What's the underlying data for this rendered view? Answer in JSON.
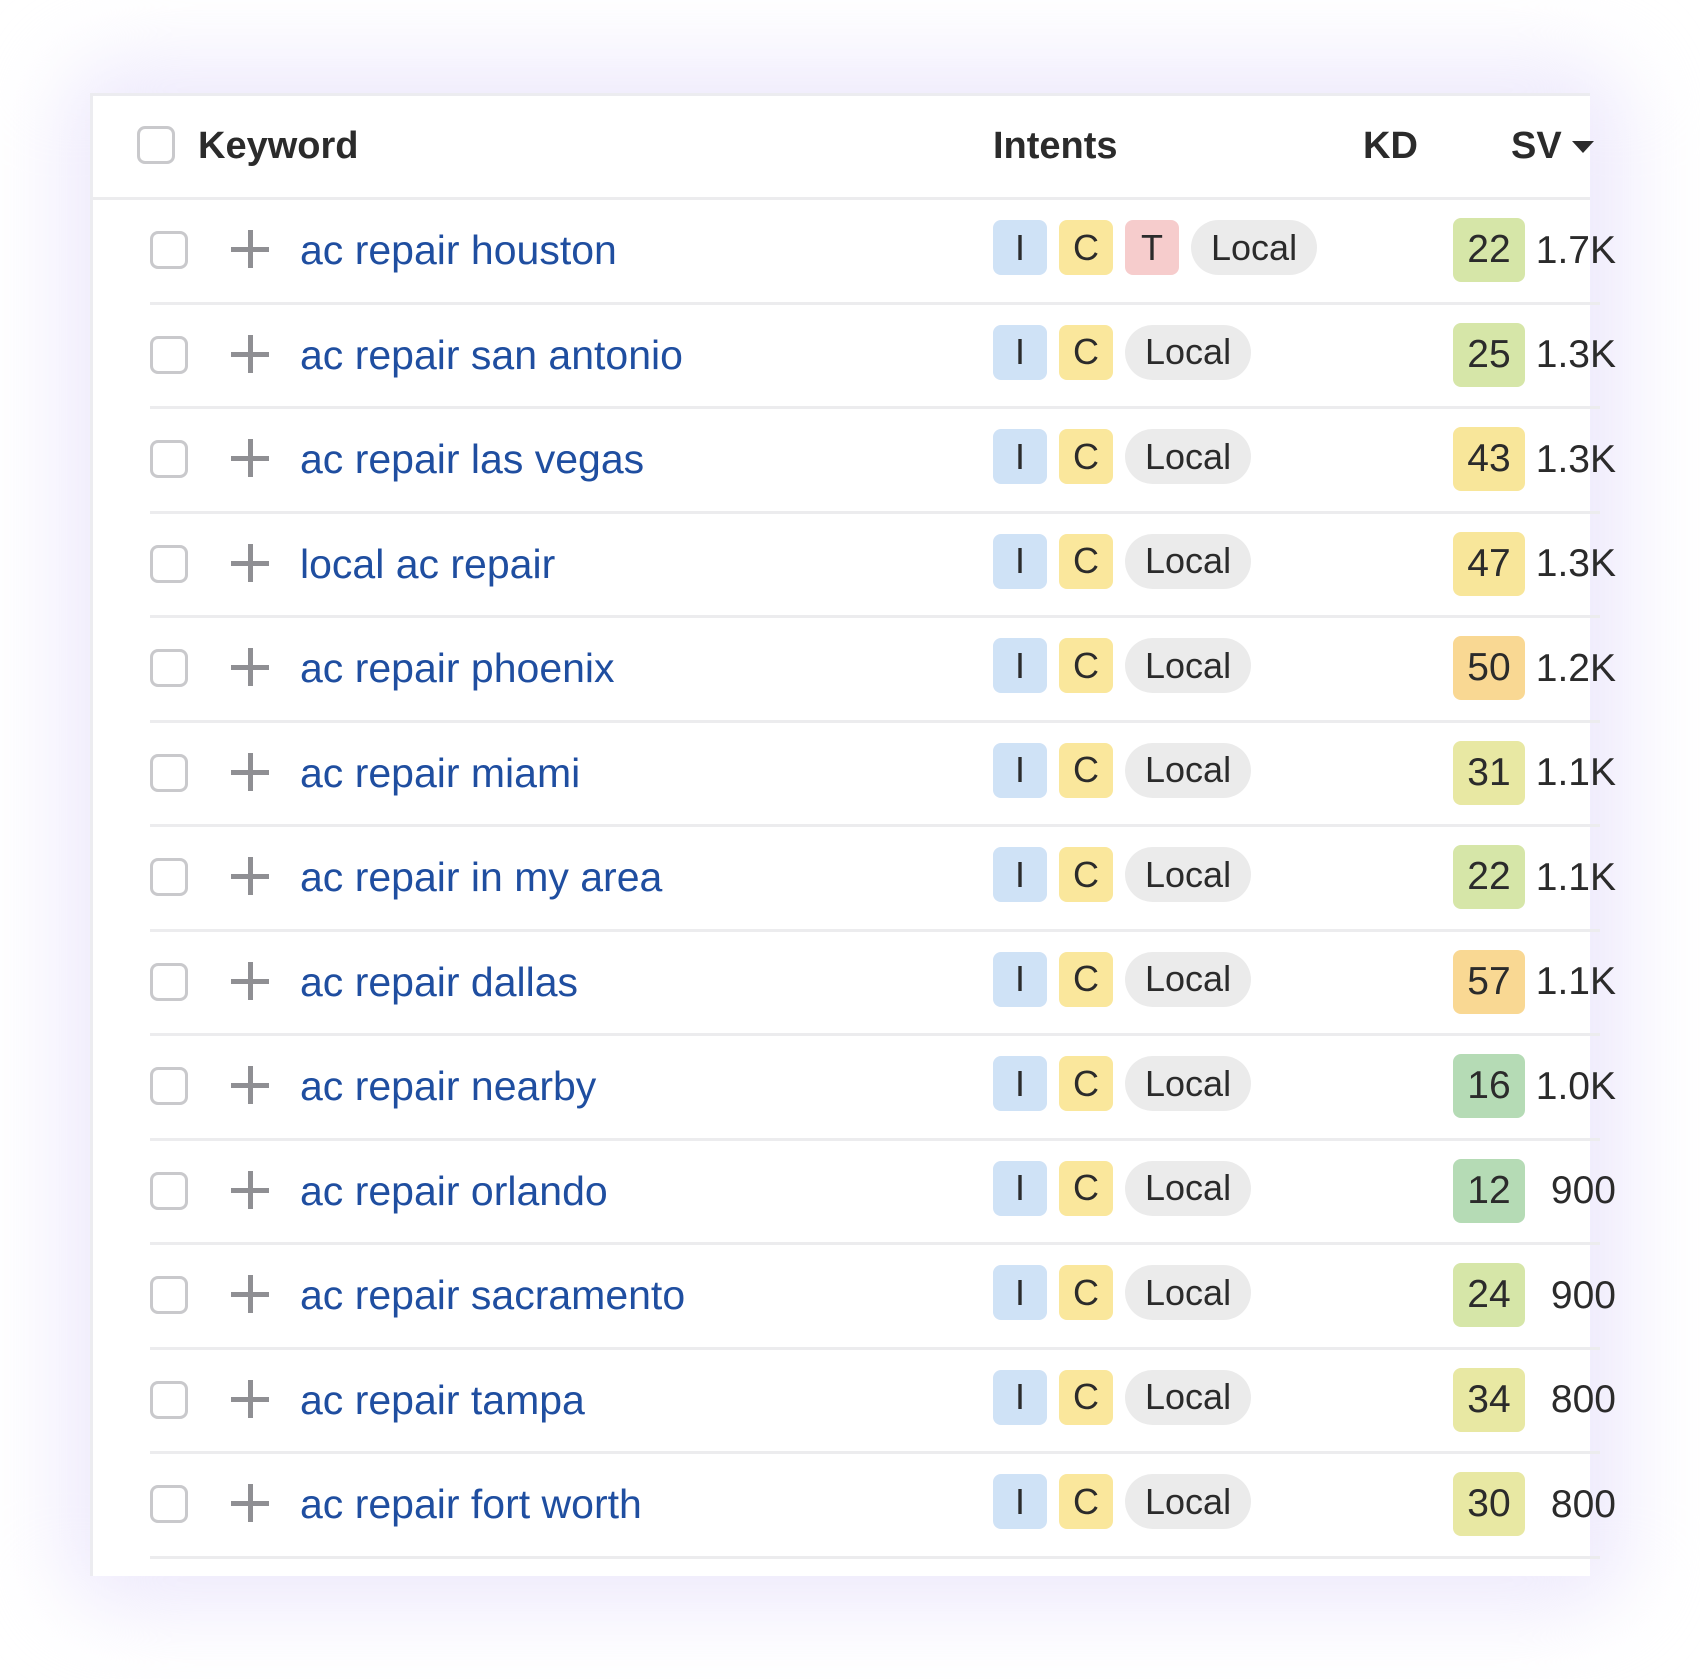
{
  "header": {
    "keyword": "Keyword",
    "intents": "Intents",
    "kd": "KD",
    "sv": "SV"
  },
  "colors": {
    "link": "#1f4ea0",
    "intent_I": "#cfe2f6",
    "intent_C": "#fae79c",
    "intent_T": "#f6cccc",
    "local": "#ebebeb"
  },
  "rows": [
    {
      "keyword": "ac repair houston",
      "intents": [
        "I",
        "C",
        "T",
        "Local"
      ],
      "kd": "22",
      "kd_color": "#d6e6a8",
      "sv": "1.7K"
    },
    {
      "keyword": "ac repair san antonio",
      "intents": [
        "I",
        "C",
        "Local"
      ],
      "kd": "25",
      "kd_color": "#d6e6a8",
      "sv": "1.3K"
    },
    {
      "keyword": "ac repair las vegas",
      "intents": [
        "I",
        "C",
        "Local"
      ],
      "kd": "43",
      "kd_color": "#f8e69a",
      "sv": "1.3K"
    },
    {
      "keyword": "local ac repair",
      "intents": [
        "I",
        "C",
        "Local"
      ],
      "kd": "47",
      "kd_color": "#f8e69a",
      "sv": "1.3K"
    },
    {
      "keyword": "ac repair phoenix",
      "intents": [
        "I",
        "C",
        "Local"
      ],
      "kd": "50",
      "kd_color": "#f9d893",
      "sv": "1.2K"
    },
    {
      "keyword": "ac repair miami",
      "intents": [
        "I",
        "C",
        "Local"
      ],
      "kd": "31",
      "kd_color": "#e8e8a3",
      "sv": "1.1K"
    },
    {
      "keyword": "ac repair in my area",
      "intents": [
        "I",
        "C",
        "Local"
      ],
      "kd": "22",
      "kd_color": "#d6e6a8",
      "sv": "1.1K"
    },
    {
      "keyword": "ac repair dallas",
      "intents": [
        "I",
        "C",
        "Local"
      ],
      "kd": "57",
      "kd_color": "#f9d893",
      "sv": "1.1K"
    },
    {
      "keyword": "ac repair nearby",
      "intents": [
        "I",
        "C",
        "Local"
      ],
      "kd": "16",
      "kd_color": "#b5dbb5",
      "sv": "1.0K"
    },
    {
      "keyword": "ac repair orlando",
      "intents": [
        "I",
        "C",
        "Local"
      ],
      "kd": "12",
      "kd_color": "#b5dbb5",
      "sv": "900"
    },
    {
      "keyword": "ac repair sacramento",
      "intents": [
        "I",
        "C",
        "Local"
      ],
      "kd": "24",
      "kd_color": "#d6e6a8",
      "sv": "900"
    },
    {
      "keyword": "ac repair tampa",
      "intents": [
        "I",
        "C",
        "Local"
      ],
      "kd": "34",
      "kd_color": "#e8e8a3",
      "sv": "800"
    },
    {
      "keyword": "ac repair fort worth",
      "intents": [
        "I",
        "C",
        "Local"
      ],
      "kd": "30",
      "kd_color": "#e8e8a3",
      "sv": "800"
    }
  ]
}
